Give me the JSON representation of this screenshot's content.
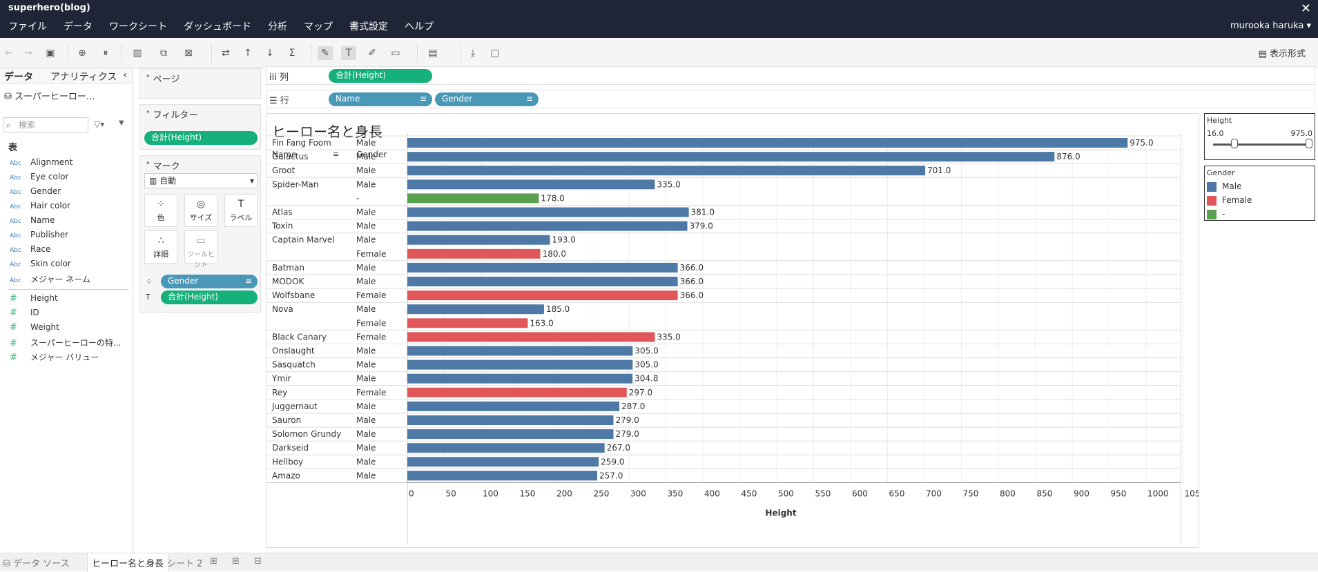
{
  "app": {
    "title": "superhero(blog)",
    "user": "murooka haruka ▾"
  },
  "menu": [
    "ファイル",
    "データ",
    "ワークシート",
    "ダッシュボード",
    "分析",
    "マップ",
    "書式設定",
    "ヘルプ"
  ],
  "toolbar": {
    "show_me": "表示形式"
  },
  "data_pane": {
    "tab_data": "データ",
    "tab_analytics": "アナリティクス",
    "datasource": "スーパーヒーロー...",
    "search_placeholder": "検索",
    "table_label": "表",
    "dimensions": [
      "Alignment",
      "Eye color",
      "Gender",
      "Hair color",
      "Name",
      "Publisher",
      "Race",
      "Skin color",
      "メジャー ネーム"
    ],
    "measures": [
      "Height",
      "ID",
      "Weight",
      "スーパーヒーローの特...",
      "メジャー バリュー"
    ]
  },
  "shelves": {
    "pages": "ページ",
    "filters": "フィルター",
    "filter_pill": "合計(Height)",
    "marks": "マーク",
    "mark_type": "自動",
    "mark_buttons": {
      "color": "色",
      "size": "サイズ",
      "label": "ラベル",
      "detail": "詳細",
      "tooltip": "ツールヒント"
    },
    "mark_pill_color": "Gender",
    "mark_pill_label": "合計(Height)",
    "columns_label": "列",
    "columns_pill": "合計(Height)",
    "rows_label": "行",
    "rows_pills": [
      "Name",
      "Gender"
    ]
  },
  "viz": {
    "title": "ヒーロー名と身長",
    "col_name": "Name",
    "col_gender": "Gender"
  },
  "colors": {
    "Male": "#4e79a7",
    "Female": "#e15759",
    "-": "#59a14f"
  },
  "chart_data": {
    "type": "bar",
    "title": "ヒーロー名と身長",
    "xlabel": "Height",
    "xlim": [
      0,
      1050
    ],
    "xticks": [
      "0",
      "50",
      "100",
      "150",
      "200",
      "250",
      "300",
      "350",
      "400",
      "450",
      "500",
      "550",
      "600",
      "650",
      "700",
      "750",
      "800",
      "850",
      "900",
      "950",
      "1000",
      "105"
    ],
    "rows": [
      {
        "name": "Fin Fang Foom",
        "gender": "Male",
        "value": 975.0,
        "label": "975.0"
      },
      {
        "name": "Galactus",
        "gender": "Male",
        "value": 876.0,
        "label": "876.0"
      },
      {
        "name": "Groot",
        "gender": "Male",
        "value": 701.0,
        "label": "701.0"
      },
      {
        "name": "Spider-Man",
        "gender": "Male",
        "value": 335.0,
        "label": "335.0"
      },
      {
        "name": "",
        "gender": "-",
        "value": 178.0,
        "label": "178.0"
      },
      {
        "name": "Atlas",
        "gender": "Male",
        "value": 381.0,
        "label": "381.0"
      },
      {
        "name": "Toxin",
        "gender": "Male",
        "value": 379.0,
        "label": "379.0"
      },
      {
        "name": "Captain Marvel",
        "gender": "Male",
        "value": 193.0,
        "label": "193.0"
      },
      {
        "name": "",
        "gender": "Female",
        "value": 180.0,
        "label": "180.0"
      },
      {
        "name": "Batman",
        "gender": "Male",
        "value": 366.0,
        "label": "366.0"
      },
      {
        "name": "MODOK",
        "gender": "Male",
        "value": 366.0,
        "label": "366.0"
      },
      {
        "name": "Wolfsbane",
        "gender": "Female",
        "value": 366.0,
        "label": "366.0"
      },
      {
        "name": "Nova",
        "gender": "Male",
        "value": 185.0,
        "label": "185.0"
      },
      {
        "name": "",
        "gender": "Female",
        "value": 163.0,
        "label": "163.0"
      },
      {
        "name": "Black Canary",
        "gender": "Female",
        "value": 335.0,
        "label": "335.0"
      },
      {
        "name": "Onslaught",
        "gender": "Male",
        "value": 305.0,
        "label": "305.0"
      },
      {
        "name": "Sasquatch",
        "gender": "Male",
        "value": 305.0,
        "label": "305.0"
      },
      {
        "name": "Ymir",
        "gender": "Male",
        "value": 304.8,
        "label": "304.8"
      },
      {
        "name": "Rey",
        "gender": "Female",
        "value": 297.0,
        "label": "297.0"
      },
      {
        "name": "Juggernaut",
        "gender": "Male",
        "value": 287.0,
        "label": "287.0"
      },
      {
        "name": "Sauron",
        "gender": "Male",
        "value": 279.0,
        "label": "279.0"
      },
      {
        "name": "Solomon Grundy",
        "gender": "Male",
        "value": 279.0,
        "label": "279.0"
      },
      {
        "name": "Darkseid",
        "gender": "Male",
        "value": 267.0,
        "label": "267.0"
      },
      {
        "name": "Hellboy",
        "gender": "Male",
        "value": 259.0,
        "label": "259.0"
      },
      {
        "name": "Amazo",
        "gender": "Male",
        "value": 257.0,
        "label": "257.0"
      }
    ]
  },
  "legend_height": {
    "title": "Height",
    "min": "16.0",
    "max": "975.0"
  },
  "legend_gender": {
    "title": "Gender",
    "items": [
      "Male",
      "Female",
      "-"
    ]
  },
  "bottom_tabs": {
    "datasource": "データ ソース",
    "sheet_active": "ヒーロー名と身長",
    "sheet2": "シート 2"
  }
}
